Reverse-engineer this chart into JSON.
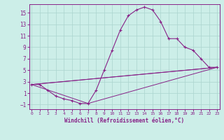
{
  "xlabel": "Windchill (Refroidissement éolien,°C)",
  "bg_color": "#cceee8",
  "grid_color": "#aad4ce",
  "line_color": "#882288",
  "series1_x": [
    0,
    1,
    2,
    3,
    4,
    5,
    6,
    7,
    8,
    9,
    10,
    11,
    12,
    13,
    14,
    15,
    16,
    17,
    18,
    19,
    20,
    21,
    22,
    23
  ],
  "series1_y": [
    2.5,
    2.5,
    1.5,
    0.5,
    0.0,
    -0.3,
    -0.8,
    -0.8,
    1.5,
    5.0,
    8.5,
    12.0,
    14.5,
    15.5,
    16.0,
    15.5,
    13.5,
    10.5,
    10.5,
    9.0,
    8.5,
    7.0,
    5.5,
    5.5
  ],
  "series2_x": [
    0,
    23
  ],
  "series2_y": [
    2.5,
    5.5
  ],
  "series3_x": [
    0,
    23
  ],
  "series3_y": [
    2.5,
    5.5
  ],
  "series4_x": [
    0,
    7,
    23
  ],
  "series4_y": [
    2.5,
    -0.8,
    5.5
  ],
  "ylim": [
    -1.8,
    16.5
  ],
  "xlim": [
    0,
    23
  ],
  "yticks": [
    -1,
    1,
    3,
    5,
    7,
    9,
    11,
    13,
    15
  ],
  "xticks": [
    0,
    1,
    2,
    3,
    4,
    5,
    6,
    7,
    8,
    9,
    10,
    11,
    12,
    13,
    14,
    15,
    16,
    17,
    18,
    19,
    20,
    21,
    22,
    23
  ]
}
